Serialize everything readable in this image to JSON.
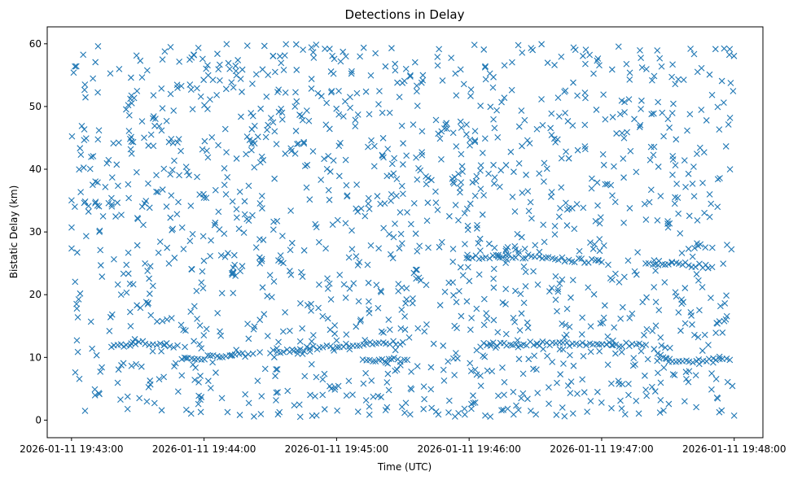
{
  "chart_data": {
    "type": "scatter",
    "title": "Detections in Delay",
    "xlabel": "Time (UTC)",
    "ylabel": "Bistatic Delay (km)",
    "marker": "x",
    "color": "#1f77b4",
    "grid": false,
    "legend": false,
    "x_axis_kind": "time",
    "xlim": [
      "2026-01-11 19:42:49",
      "2026-01-11 19:48:13"
    ],
    "ylim": [
      -2.8,
      62.7
    ],
    "x_ticks": [
      "2026-01-11 19:43:00",
      "2026-01-11 19:44:00",
      "2026-01-11 19:45:00",
      "2026-01-11 19:46:00",
      "2026-01-11 19:47:00",
      "2026-01-11 19:48:00"
    ],
    "y_ticks": [
      0,
      10,
      20,
      30,
      40,
      50,
      60
    ],
    "time_range": [
      "2026-01-11 19:43:00",
      "2026-01-11 19:48:00"
    ],
    "delay_range_km": [
      0.5,
      60
    ],
    "approx_point_count": 1800,
    "tracks": [
      {
        "description": "delay track near 12 km",
        "points": [
          [
            "2026-01-11 19:43:18",
            11.8
          ],
          [
            "2026-01-11 19:43:25",
            12.1
          ],
          [
            "2026-01-11 19:43:32",
            12.3
          ],
          [
            "2026-01-11 19:43:40",
            12.0
          ],
          [
            "2026-01-11 19:43:48",
            11.9
          ]
        ]
      },
      {
        "description": "delay track near 10 km",
        "points": [
          [
            "2026-01-11 19:43:50",
            9.6
          ],
          [
            "2026-01-11 19:44:00",
            10.0
          ],
          [
            "2026-01-11 19:44:10",
            10.3
          ],
          [
            "2026-01-11 19:44:20",
            10.5
          ]
        ]
      },
      {
        "description": "delay track near 11-12 km",
        "points": [
          [
            "2026-01-11 19:44:30",
            10.8
          ],
          [
            "2026-01-11 19:44:45",
            11.3
          ],
          [
            "2026-01-11 19:45:00",
            11.8
          ],
          [
            "2026-01-11 19:45:15",
            12.2
          ],
          [
            "2026-01-11 19:45:30",
            12.4
          ]
        ]
      },
      {
        "description": "delay track near 9.5 km",
        "points": [
          [
            "2026-01-11 19:45:12",
            9.6
          ],
          [
            "2026-01-11 19:45:22",
            9.7
          ],
          [
            "2026-01-11 19:45:32",
            9.6
          ]
        ]
      },
      {
        "description": "delay track near 26 km",
        "points": [
          [
            "2026-01-11 19:46:00",
            25.8
          ],
          [
            "2026-01-11 19:46:15",
            26.2
          ],
          [
            "2026-01-11 19:46:30",
            26.0
          ],
          [
            "2026-01-11 19:46:45",
            25.6
          ],
          [
            "2026-01-11 19:47:00",
            25.2
          ]
        ]
      },
      {
        "description": "delay track near 12 km (late)",
        "points": [
          [
            "2026-01-11 19:46:05",
            12.0
          ],
          [
            "2026-01-11 19:46:20",
            12.2
          ],
          [
            "2026-01-11 19:47:05",
            12.1
          ],
          [
            "2026-01-11 19:47:20",
            12.0
          ]
        ]
      },
      {
        "description": "delay track near 25 km (late)",
        "points": [
          [
            "2026-01-11 19:47:20",
            25.2
          ],
          [
            "2026-01-11 19:47:35",
            24.9
          ],
          [
            "2026-01-11 19:47:50",
            24.4
          ]
        ]
      },
      {
        "description": "delay track near 9.5 km (late)",
        "points": [
          [
            "2026-01-11 19:47:25",
            9.8
          ],
          [
            "2026-01-11 19:47:35",
            9.5
          ],
          [
            "2026-01-11 19:47:58",
            9.6
          ]
        ]
      }
    ]
  }
}
